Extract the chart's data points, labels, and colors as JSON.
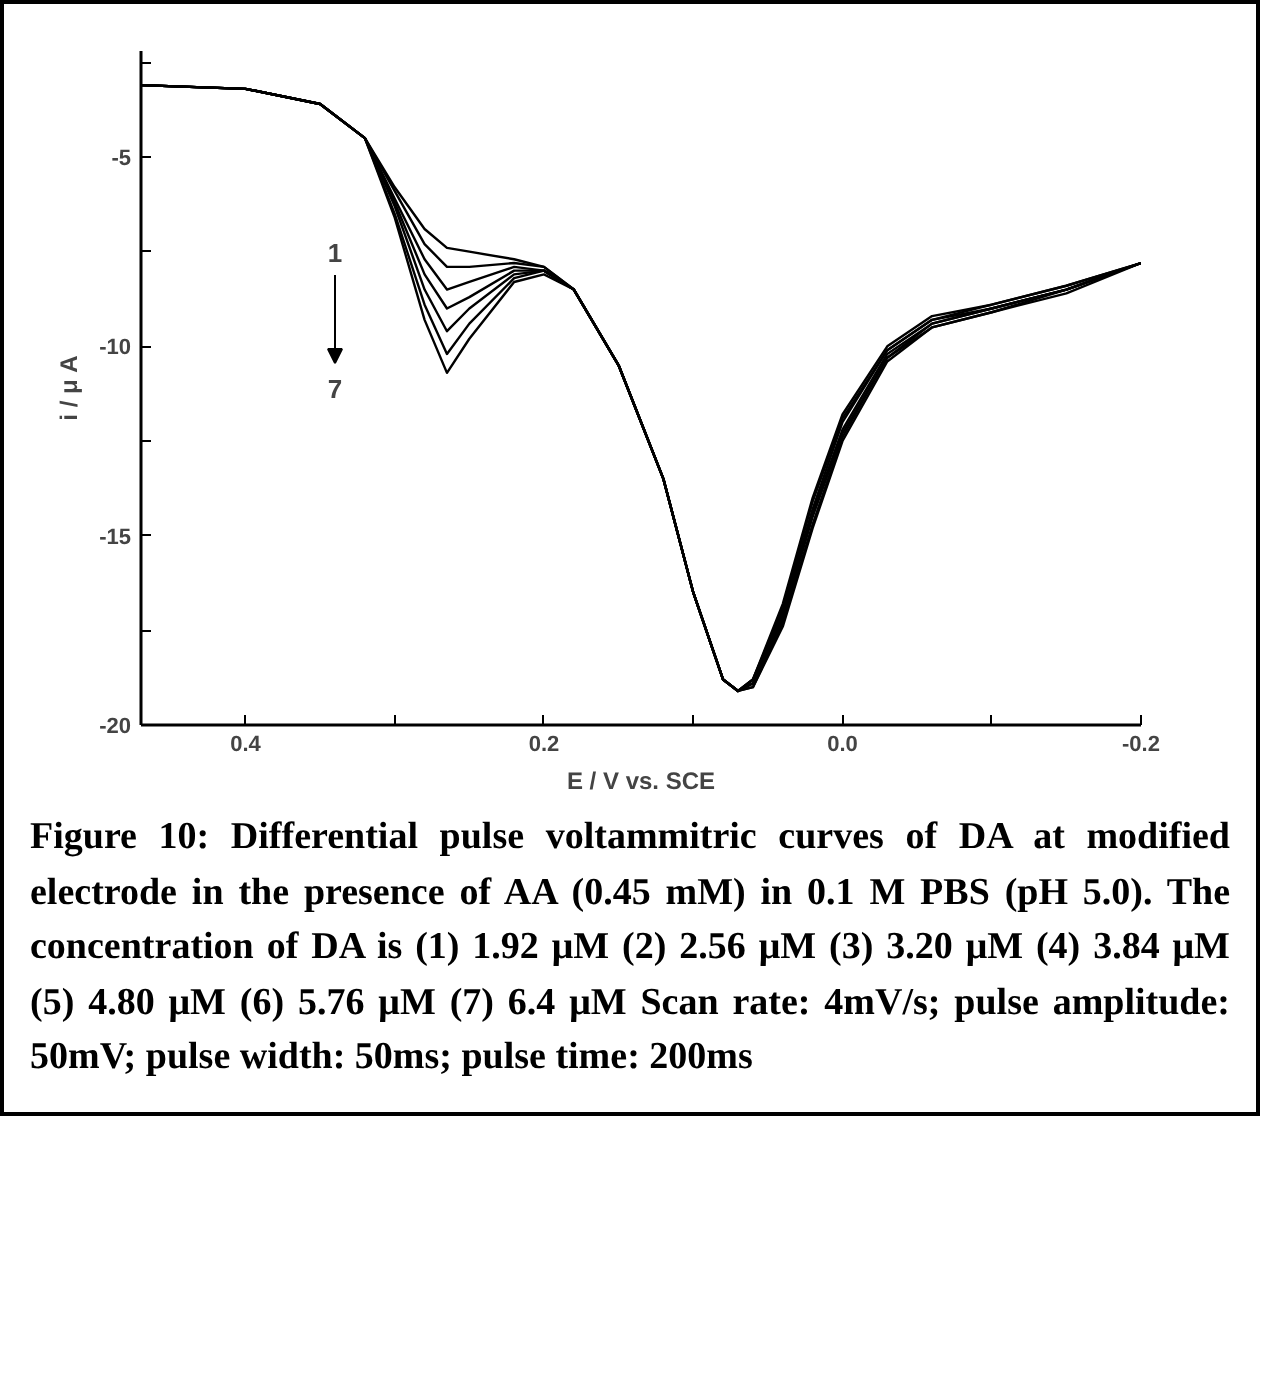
{
  "chart_data": {
    "type": "line",
    "xlabel": "E / V vs. SCE",
    "ylabel": "i / μ A",
    "x": [
      0.47,
      0.4,
      0.35,
      0.32,
      0.3,
      0.28,
      0.265,
      0.25,
      0.22,
      0.2,
      0.18,
      0.15,
      0.12,
      0.1,
      0.08,
      0.07,
      0.06,
      0.04,
      0.02,
      0.0,
      -0.03,
      -0.06,
      -0.1,
      -0.15,
      -0.2
    ],
    "series": [
      {
        "color": "#000000",
        "values": [
          -3.1,
          -3.2,
          -3.6,
          -4.5,
          -5.8,
          -6.9,
          -7.4,
          -7.5,
          -7.7,
          -7.9,
          -8.5,
          -10.5,
          -13.5,
          -16.5,
          -18.8,
          -19.1,
          -18.8,
          -16.8,
          -14.0,
          -11.8,
          -10.0,
          -9.2,
          -8.9,
          -8.4,
          -7.8
        ]
      },
      {
        "color": "#000000",
        "values": [
          -3.1,
          -3.2,
          -3.6,
          -4.5,
          -5.9,
          -7.3,
          -7.9,
          -7.9,
          -7.8,
          -7.9,
          -8.5,
          -10.5,
          -13.5,
          -16.5,
          -18.8,
          -19.1,
          -18.8,
          -16.9,
          -14.1,
          -11.9,
          -10.1,
          -9.3,
          -8.9,
          -8.4,
          -7.8
        ]
      },
      {
        "color": "#000000",
        "values": [
          -3.1,
          -3.2,
          -3.6,
          -4.5,
          -6.1,
          -7.7,
          -8.5,
          -8.3,
          -7.9,
          -8.0,
          -8.5,
          -10.5,
          -13.5,
          -16.5,
          -18.8,
          -19.1,
          -18.8,
          -17.0,
          -14.3,
          -12.0,
          -10.1,
          -9.3,
          -9.0,
          -8.5,
          -7.8
        ]
      },
      {
        "color": "#000000",
        "values": [
          -3.1,
          -3.2,
          -3.6,
          -4.5,
          -6.2,
          -8.1,
          -9.0,
          -8.7,
          -8.0,
          -8.0,
          -8.5,
          -10.5,
          -13.5,
          -16.5,
          -18.8,
          -19.1,
          -18.9,
          -17.1,
          -14.4,
          -12.2,
          -10.2,
          -9.4,
          -9.0,
          -8.5,
          -7.8
        ]
      },
      {
        "color": "#000000",
        "values": [
          -3.1,
          -3.2,
          -3.6,
          -4.5,
          -6.3,
          -8.5,
          -9.6,
          -9.0,
          -8.1,
          -8.0,
          -8.5,
          -10.5,
          -13.5,
          -16.5,
          -18.8,
          -19.1,
          -18.9,
          -17.2,
          -14.5,
          -12.3,
          -10.3,
          -9.4,
          -9.0,
          -8.5,
          -7.8
        ]
      },
      {
        "color": "#000000",
        "values": [
          -3.1,
          -3.2,
          -3.6,
          -4.5,
          -6.5,
          -8.9,
          -10.2,
          -9.4,
          -8.2,
          -8.0,
          -8.5,
          -10.5,
          -13.5,
          -16.5,
          -18.8,
          -19.1,
          -19.0,
          -17.3,
          -14.7,
          -12.4,
          -10.3,
          -9.5,
          -9.1,
          -8.5,
          -7.8
        ]
      },
      {
        "color": "#000000",
        "values": [
          -3.1,
          -3.2,
          -3.6,
          -4.5,
          -6.6,
          -9.3,
          -10.7,
          -9.8,
          -8.3,
          -8.1,
          -8.5,
          -10.5,
          -13.5,
          -16.5,
          -18.8,
          -19.1,
          -19.0,
          -17.4,
          -14.8,
          -12.5,
          -10.4,
          -9.5,
          -9.1,
          -8.6,
          -7.8
        ]
      }
    ],
    "xlim": [
      0.47,
      -0.2
    ],
    "ylim": [
      -20,
      -2.2
    ],
    "xticks": [
      0.4,
      {
        "value": 0.3,
        "label": null
      },
      0.2,
      {
        "value": 0.1,
        "label": null
      },
      {
        "value": 0,
        "label": "0.0"
      },
      {
        "value": -0.1,
        "label": null
      },
      -0.2
    ],
    "yticks": [
      {
        "value": -2.5,
        "label": null
      },
      -5,
      {
        "value": -7.5,
        "label": null
      },
      -10,
      {
        "value": -12.5,
        "label": null
      },
      -15,
      {
        "value": -17.5,
        "label": null
      },
      -20
    ],
    "grid": false,
    "line_style": "solid",
    "marker": "none",
    "annotations": [
      "1",
      "7",
      "Figure 10: Differential pulse voltammitric curves of DA at modified electrode in the presence of AA (0.45 mM) in 0.1 M PBS (pH 5.0). The concentration of DA is (1) 1.92 μM (2) 2.56 μM (3) 3.20 μM (4) 3.84 μM (5) 4.80 μM (6) 5.76 μM (7) 6.4 μM Scan rate: 4mV/s; pulse amplitude: 50mV; pulse width: 50ms; pulse time: 200ms"
    ]
  }
}
